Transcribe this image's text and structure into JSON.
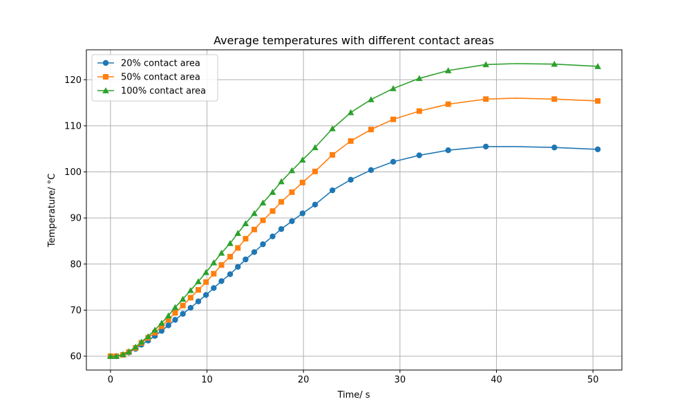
{
  "chart_data": {
    "type": "line",
    "title": "Average temperatures with different contact areas",
    "xlabel": "Time/ s",
    "ylabel": "Temperature/ °C",
    "xlim": [
      -2.5,
      53.0
    ],
    "ylim": [
      57.0,
      126.5
    ],
    "xticks": [
      0,
      10,
      20,
      30,
      40,
      50
    ],
    "yticks": [
      60,
      70,
      80,
      90,
      100,
      110,
      120
    ],
    "grid": true,
    "legend_position": "top-left",
    "series": [
      {
        "name": "20% contact area",
        "color": "#1f77b4",
        "marker": "circle",
        "points": [
          [
            0,
            60.0
          ],
          [
            0.6,
            60.0
          ],
          [
            1.3,
            60.3
          ],
          [
            1.9,
            60.8
          ],
          [
            2.6,
            61.6
          ],
          [
            3.2,
            62.5
          ],
          [
            3.9,
            63.4
          ],
          [
            4.6,
            64.4
          ],
          [
            5.3,
            65.5
          ],
          [
            6.0,
            66.7
          ],
          [
            6.7,
            67.9
          ],
          [
            7.5,
            69.2
          ],
          [
            8.3,
            70.5
          ],
          [
            9.1,
            71.9
          ],
          [
            9.9,
            73.3
          ],
          [
            10.7,
            74.8
          ],
          [
            11.5,
            76.3
          ],
          [
            12.4,
            77.8
          ],
          [
            13.2,
            79.4
          ],
          [
            14.0,
            81.0
          ],
          [
            14.9,
            82.6
          ],
          [
            15.8,
            84.3
          ],
          [
            16.8,
            86.0
          ],
          [
            17.7,
            87.6
          ],
          [
            18.8,
            89.3
          ],
          [
            19.9,
            91.0
          ],
          [
            21.2,
            92.9
          ],
          [
            23.0,
            96.0
          ],
          [
            24.9,
            98.3
          ],
          [
            27.0,
            100.4
          ],
          [
            29.3,
            102.2
          ],
          [
            32.0,
            103.6
          ],
          [
            35.0,
            104.7
          ],
          [
            38.9,
            105.5
          ],
          [
            42.0,
            105.5
          ],
          [
            46.0,
            105.3
          ],
          [
            50.5,
            104.9
          ]
        ]
      },
      {
        "name": "50% contact area",
        "color": "#ff7f0e",
        "marker": "square",
        "points": [
          [
            0,
            60.0
          ],
          [
            0.6,
            60.0
          ],
          [
            1.3,
            60.3
          ],
          [
            1.9,
            60.9
          ],
          [
            2.6,
            61.8
          ],
          [
            3.2,
            62.9
          ],
          [
            3.9,
            64.0
          ],
          [
            4.6,
            65.1
          ],
          [
            5.3,
            66.5
          ],
          [
            6.0,
            67.9
          ],
          [
            6.7,
            69.4
          ],
          [
            7.5,
            71.0
          ],
          [
            8.3,
            72.7
          ],
          [
            9.1,
            74.4
          ],
          [
            9.9,
            76.1
          ],
          [
            10.7,
            77.9
          ],
          [
            11.5,
            79.8
          ],
          [
            12.4,
            81.6
          ],
          [
            13.2,
            83.5
          ],
          [
            14.0,
            85.5
          ],
          [
            14.9,
            87.5
          ],
          [
            15.8,
            89.5
          ],
          [
            16.8,
            91.5
          ],
          [
            17.7,
            93.5
          ],
          [
            18.8,
            95.6
          ],
          [
            19.9,
            97.7
          ],
          [
            21.2,
            100.1
          ],
          [
            23.0,
            103.7
          ],
          [
            24.9,
            106.7
          ],
          [
            27.0,
            109.2
          ],
          [
            29.3,
            111.4
          ],
          [
            32.0,
            113.2
          ],
          [
            35.0,
            114.7
          ],
          [
            38.9,
            115.8
          ],
          [
            42.0,
            116.0
          ],
          [
            46.0,
            115.8
          ],
          [
            50.5,
            115.4
          ]
        ]
      },
      {
        "name": "100% contact area",
        "color": "#2ca02c",
        "marker": "triangle",
        "points": [
          [
            0,
            60.0
          ],
          [
            0.6,
            60.0
          ],
          [
            1.3,
            60.4
          ],
          [
            1.9,
            61.0
          ],
          [
            2.6,
            62.0
          ],
          [
            3.2,
            63.1
          ],
          [
            3.9,
            64.3
          ],
          [
            4.6,
            65.7
          ],
          [
            5.3,
            67.2
          ],
          [
            6.0,
            68.8
          ],
          [
            6.7,
            70.6
          ],
          [
            7.5,
            72.4
          ],
          [
            8.3,
            74.3
          ],
          [
            9.1,
            76.2
          ],
          [
            9.9,
            78.2
          ],
          [
            10.7,
            80.3
          ],
          [
            11.5,
            82.4
          ],
          [
            12.4,
            84.5
          ],
          [
            13.2,
            86.7
          ],
          [
            14.0,
            88.8
          ],
          [
            14.9,
            91.0
          ],
          [
            15.8,
            93.3
          ],
          [
            16.8,
            95.6
          ],
          [
            17.7,
            97.9
          ],
          [
            18.8,
            100.3
          ],
          [
            19.9,
            102.6
          ],
          [
            21.2,
            105.3
          ],
          [
            23.0,
            109.4
          ],
          [
            24.9,
            112.9
          ],
          [
            27.0,
            115.7
          ],
          [
            29.3,
            118.1
          ],
          [
            32.0,
            120.3
          ],
          [
            35.0,
            122.0
          ],
          [
            38.9,
            123.3
          ],
          [
            42.0,
            123.5
          ],
          [
            46.0,
            123.4
          ],
          [
            50.5,
            122.9
          ]
        ]
      }
    ]
  }
}
